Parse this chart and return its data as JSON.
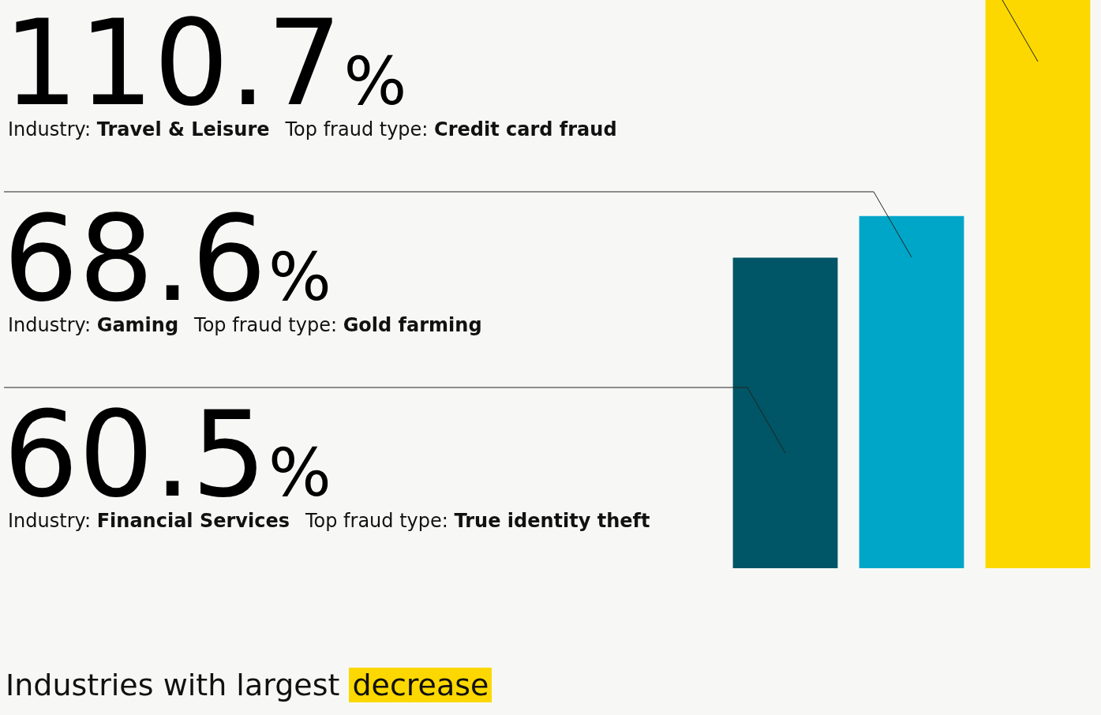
{
  "chart_data": {
    "type": "bar",
    "title": "Industries with largest decrease",
    "categories": [
      null,
      null,
      null
    ],
    "values": [
      60.5,
      68.6,
      110.7
    ],
    "value_labels": [
      "60.5%",
      "68.6%",
      "110.7%"
    ],
    "colors": [
      "#005566",
      "#00a6c8",
      "#fcd800"
    ],
    "ylim": [
      0,
      110.7
    ],
    "tick_labels": false,
    "legend": false,
    "annotations": [
      "Industry: Financial Services   Top fraud type: True identity theft",
      "Industry: Gaming   Top fraud type: Gold farming",
      "Industry: Travel & Leisure   Top fraud type: Credit card fraud"
    ]
  }
}
